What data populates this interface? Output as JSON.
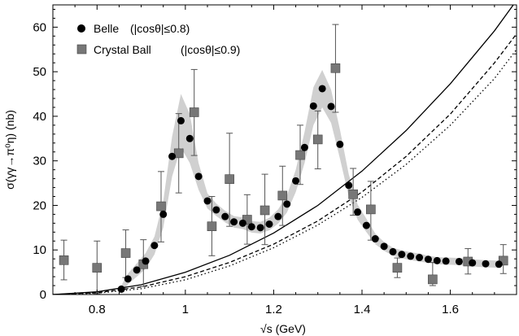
{
  "chart_data": {
    "type": "scatter",
    "title": "",
    "xlabel": "√s  (GeV)",
    "ylabel": "σ(γγ→π⁰η)  (nb)",
    "xlim": [
      0.7,
      1.75
    ],
    "ylim": [
      0,
      65
    ],
    "x_ticks": [
      "0.8",
      "1",
      "1.2",
      "1.4",
      "1.6"
    ],
    "x_tick_values": [
      0.8,
      1.0,
      1.2,
      1.4,
      1.6
    ],
    "y_ticks": [
      "0",
      "10",
      "20",
      "30",
      "40",
      "50",
      "60"
    ],
    "y_tick_values": [
      0,
      10,
      20,
      30,
      40,
      50,
      60
    ],
    "grid": false,
    "legend_position": "top-left",
    "series": [
      {
        "name": "Belle",
        "legend_label": "Belle",
        "legend_note": "(|cosθ|≤0.8)",
        "marker": "circle",
        "color": "#000000",
        "points": [
          [
            0.855,
            1.2
          ],
          [
            0.87,
            3.5
          ],
          [
            0.89,
            5.5
          ],
          [
            0.91,
            7.5
          ],
          [
            0.93,
            11.0
          ],
          [
            0.95,
            18.0
          ],
          [
            0.97,
            31.0
          ],
          [
            0.99,
            39.0
          ],
          [
            1.01,
            35.0
          ],
          [
            1.03,
            26.5
          ],
          [
            1.05,
            21.0
          ],
          [
            1.07,
            19.0
          ],
          [
            1.09,
            17.5
          ],
          [
            1.11,
            16.3
          ],
          [
            1.13,
            16.0
          ],
          [
            1.15,
            15.2
          ],
          [
            1.17,
            15.0
          ],
          [
            1.19,
            15.8
          ],
          [
            1.21,
            17.5
          ],
          [
            1.23,
            20.3
          ],
          [
            1.25,
            25.5
          ],
          [
            1.27,
            33.0
          ],
          [
            1.29,
            42.3
          ],
          [
            1.31,
            46.2
          ],
          [
            1.33,
            42.2
          ],
          [
            1.35,
            33.7
          ],
          [
            1.37,
            24.5
          ],
          [
            1.39,
            18.5
          ],
          [
            1.41,
            15.5
          ],
          [
            1.43,
            12.5
          ],
          [
            1.45,
            10.8
          ],
          [
            1.47,
            9.6
          ],
          [
            1.49,
            9.0
          ],
          [
            1.51,
            8.6
          ],
          [
            1.53,
            8.3
          ],
          [
            1.55,
            7.9
          ],
          [
            1.57,
            7.6
          ],
          [
            1.59,
            7.5
          ],
          [
            1.62,
            7.4
          ],
          [
            1.65,
            7.1
          ],
          [
            1.68,
            6.9
          ],
          [
            1.71,
            6.8
          ]
        ]
      },
      {
        "name": "Crystal Ball",
        "legend_label": "Crystal Ball",
        "legend_note": "(|cosθ|≤0.9)",
        "marker": "square",
        "color": "#777777",
        "points": [
          {
            "x": 0.725,
            "y": 7.7,
            "lo": 3.3,
            "hi": 12.2
          },
          {
            "x": 0.8,
            "y": 6.0,
            "lo": 0.2,
            "hi": 12.0
          },
          {
            "x": 0.865,
            "y": 9.3,
            "lo": 3.8,
            "hi": 14.5
          },
          {
            "x": 0.905,
            "y": 6.8,
            "lo": 1.8,
            "hi": 12.3
          },
          {
            "x": 0.945,
            "y": 19.8,
            "lo": 11.8,
            "hi": 27.6
          },
          {
            "x": 0.985,
            "y": 31.7,
            "lo": 22.8,
            "hi": 40.6
          },
          {
            "x": 1.02,
            "y": 40.9,
            "lo": 31.2,
            "hi": 50.5
          },
          {
            "x": 1.06,
            "y": 15.3,
            "lo": 8.7,
            "hi": 22.0
          },
          {
            "x": 1.1,
            "y": 25.9,
            "lo": 15.3,
            "hi": 36.2
          },
          {
            "x": 1.14,
            "y": 16.8,
            "lo": 11.3,
            "hi": 22.4
          },
          {
            "x": 1.18,
            "y": 18.9,
            "lo": 11.2,
            "hi": 27.0
          },
          {
            "x": 1.22,
            "y": 22.2,
            "lo": 15.5,
            "hi": 28.8
          },
          {
            "x": 1.26,
            "y": 31.3,
            "lo": 24.7,
            "hi": 38.0
          },
          {
            "x": 1.3,
            "y": 34.8,
            "lo": 28.2,
            "hi": 41.2
          },
          {
            "x": 1.34,
            "y": 50.8,
            "lo": 40.9,
            "hi": 60.6
          },
          {
            "x": 1.38,
            "y": 22.5,
            "lo": 17.8,
            "hi": 28.3
          },
          {
            "x": 1.42,
            "y": 19.1,
            "lo": 12.2,
            "hi": 25.4
          },
          {
            "x": 1.48,
            "y": 6.0,
            "lo": 3.8,
            "hi": 8.2
          },
          {
            "x": 1.56,
            "y": 3.4,
            "lo": 2.0,
            "hi": 7.2
          },
          {
            "x": 1.64,
            "y": 7.4,
            "lo": 4.6,
            "hi": 10.3
          },
          {
            "x": 1.72,
            "y": 7.6,
            "lo": 4.7,
            "hi": 11.2
          }
        ]
      }
    ],
    "band": {
      "color": "#d0d0d0",
      "x": [
        0.855,
        0.87,
        0.89,
        0.91,
        0.93,
        0.95,
        0.97,
        0.99,
        1.01,
        1.03,
        1.05,
        1.07,
        1.09,
        1.11,
        1.13,
        1.15,
        1.17,
        1.19,
        1.21,
        1.23,
        1.25,
        1.27,
        1.29,
        1.31,
        1.33,
        1.35,
        1.37,
        1.39,
        1.41,
        1.43,
        1.45,
        1.47,
        1.49,
        1.51,
        1.53,
        1.55,
        1.57,
        1.59,
        1.62,
        1.65,
        1.68,
        1.71
      ],
      "low": [
        0.3,
        2.3,
        4.0,
        5.8,
        9.0,
        15.0,
        26.5,
        33.0,
        29.5,
        23.5,
        19.3,
        17.6,
        16.2,
        15.0,
        14.7,
        13.9,
        13.7,
        14.4,
        15.9,
        18.4,
        23.0,
        29.5,
        38.0,
        42.0,
        38.5,
        30.5,
        22.0,
        16.8,
        14.0,
        11.3,
        9.8,
        8.7,
        8.1,
        7.7,
        7.4,
        7.1,
        6.8,
        6.7,
        6.6,
        6.3,
        6.1,
        6.0
      ],
      "high": [
        2.0,
        4.7,
        7.0,
        9.3,
        13.0,
        21.0,
        35.5,
        45.0,
        40.5,
        29.5,
        22.7,
        20.4,
        18.8,
        17.6,
        17.3,
        16.5,
        16.3,
        17.2,
        19.1,
        22.2,
        28.0,
        36.5,
        46.5,
        50.4,
        46.0,
        37.0,
        27.0,
        20.2,
        17.0,
        13.7,
        11.8,
        10.5,
        9.9,
        9.5,
        9.2,
        8.7,
        8.4,
        8.3,
        8.2,
        7.9,
        7.7,
        7.6
      ]
    },
    "curves": [
      {
        "style": "solid",
        "color": "#000000",
        "x": [
          0.7,
          0.8,
          0.9,
          1.0,
          1.1,
          1.2,
          1.3,
          1.4,
          1.5,
          1.6,
          1.7,
          1.75
        ],
        "y": [
          0.0,
          0.6,
          2.2,
          5.0,
          8.8,
          13.8,
          20.0,
          27.7,
          36.8,
          47.3,
          59.2,
          66.0
        ]
      },
      {
        "style": "dashed",
        "color": "#000000",
        "x": [
          0.7,
          0.8,
          0.9,
          1.0,
          1.1,
          1.2,
          1.3,
          1.4,
          1.5,
          1.6,
          1.7,
          1.75
        ],
        "y": [
          0.0,
          0.4,
          1.7,
          4.0,
          7.2,
          11.3,
          16.5,
          23.0,
          31.0,
          40.5,
          52.0,
          58.5
        ]
      },
      {
        "style": "dotted",
        "color": "#000000",
        "x": [
          0.7,
          0.8,
          0.9,
          1.0,
          1.1,
          1.2,
          1.3,
          1.4,
          1.5,
          1.6,
          1.7,
          1.75
        ],
        "y": [
          0.0,
          0.3,
          1.3,
          3.3,
          6.4,
          10.5,
          15.6,
          21.8,
          29.2,
          38.0,
          48.5,
          55.0
        ]
      }
    ]
  }
}
